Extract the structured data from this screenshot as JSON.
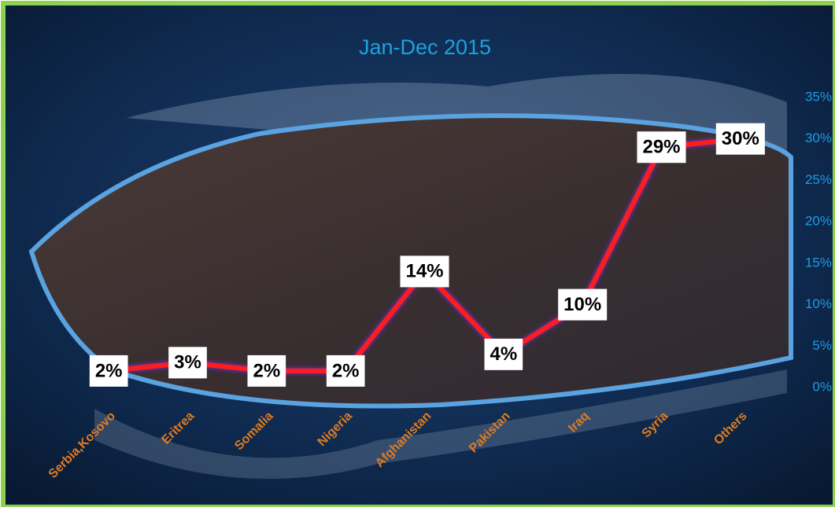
{
  "chart_data": {
    "type": "line",
    "title": "Jan-Dec 2015",
    "categories": [
      "Serbia,Kosovo",
      "Eritrea",
      "Somalia",
      "Nigeria",
      "Afghanistan",
      "Pakistan",
      "Iraq",
      "Syria",
      "Others"
    ],
    "values": [
      2,
      3,
      2,
      2,
      14,
      4,
      10,
      29,
      30
    ],
    "value_labels": [
      "2%",
      "3%",
      "2%",
      "2%",
      "14%",
      "4%",
      "10%",
      "29%",
      "30%"
    ],
    "color": "#ff1a1a",
    "ylim": [
      0,
      35
    ],
    "yticks": [
      {
        "value": 0,
        "label": "0%"
      },
      {
        "value": 5,
        "label": "5%"
      },
      {
        "value": 10,
        "label": "10%"
      },
      {
        "value": 15,
        "label": "15%"
      },
      {
        "value": 20,
        "label": "20%"
      },
      {
        "value": 25,
        "label": "25%"
      },
      {
        "value": 30,
        "label": "30%"
      },
      {
        "value": 35,
        "label": "35%"
      }
    ]
  }
}
